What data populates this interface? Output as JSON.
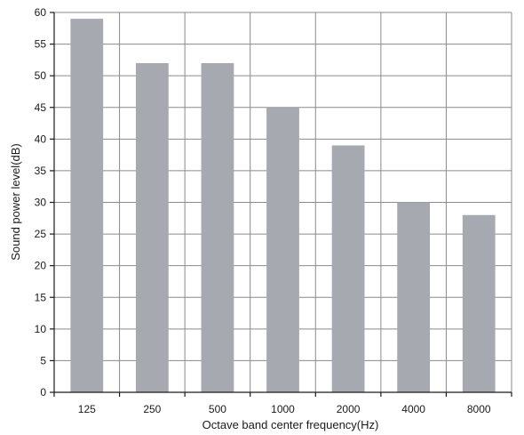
{
  "chart_data": {
    "type": "bar",
    "categories": [
      "125",
      "250",
      "500",
      "1000",
      "2000",
      "4000",
      "8000"
    ],
    "values": [
      59,
      52,
      52,
      45,
      39,
      30,
      28
    ],
    "xlabel": "Octave band center frequency(Hz)",
    "ylabel": "Sound power level(dB)",
    "ylim": [
      0,
      60
    ],
    "yticks": [
      0,
      5,
      10,
      15,
      20,
      25,
      30,
      35,
      40,
      45,
      50,
      55,
      60
    ],
    "grid": true,
    "bar_color": "#a7a9b0"
  }
}
